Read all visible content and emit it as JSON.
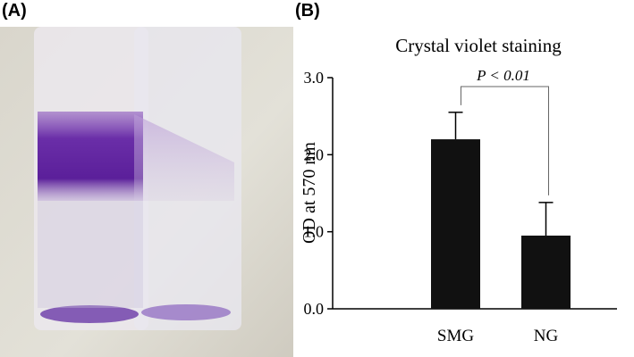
{
  "panels": {
    "a_label": "(A)",
    "b_label": "(B)"
  },
  "chart_data": {
    "type": "bar",
    "title": "Crystal violet staining",
    "ylabel": "OD at 570 nm",
    "categories": [
      "SMG",
      "NG"
    ],
    "values": [
      2.2,
      0.95
    ],
    "errors": [
      0.35,
      0.43
    ],
    "color": "#111111",
    "ylim": [
      0,
      3
    ],
    "yticks": [
      {
        "value": 0,
        "label": "0.0"
      },
      {
        "value": 1,
        "label": "1.0"
      },
      {
        "value": 2,
        "label": "2.0"
      },
      {
        "value": 3,
        "label": "3.0"
      }
    ],
    "annotation": "P < 0.01",
    "grid": false
  }
}
